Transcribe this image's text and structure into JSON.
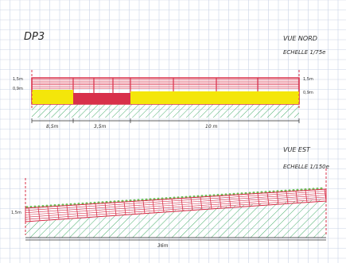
{
  "sheet": {
    "id": "DP3"
  },
  "north_view": {
    "title": "VUE NORD",
    "scale": "ECHELLE 1/75e",
    "height_left_top": "1,5m",
    "height_left_mid": "0,9m",
    "height_right_top": "1,5m",
    "height_right_mid": "0,9m",
    "dim_left": "8,5m",
    "dim_mid": "3,5m",
    "dim_right": "10 m"
  },
  "east_view": {
    "title": "VUE EST",
    "scale": "ECHELLE 1/150e",
    "height_left": "1,5m",
    "dim_bottom": "36m"
  },
  "colors": {
    "grid": "#c9d3e6",
    "fence_red": "#d8304a",
    "wall_yellow": "#f4e60a",
    "ground_hatch": "#4caf6e",
    "vegetation": "#6fbf5a",
    "ink": "#2b2b2b"
  }
}
